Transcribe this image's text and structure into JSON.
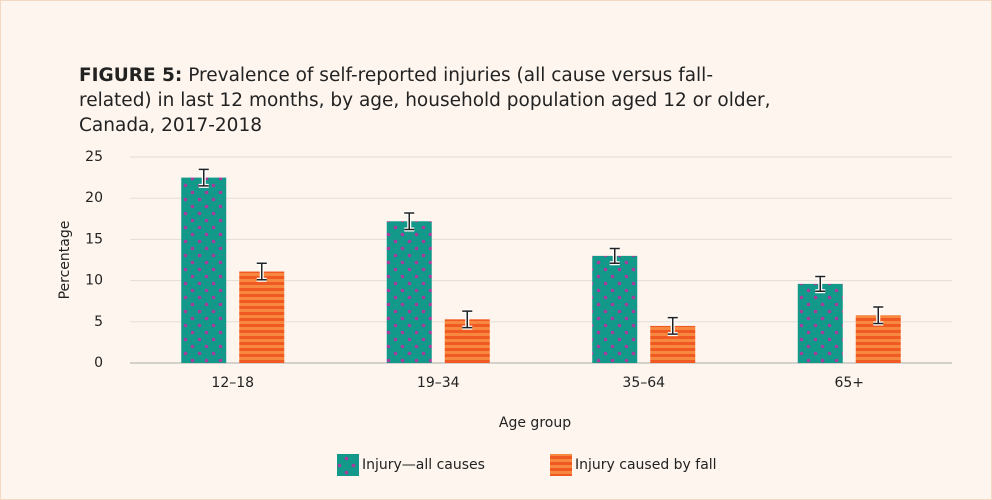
{
  "chart_data": {
    "type": "bar",
    "title_label": "FIGURE 5:",
    "title": "Prevalence of self-reported injuries (all cause versus fall-related) in last 12 months, by age, household population aged 12 or older, Canada, 2017-2018",
    "categories": [
      "12–18",
      "19–34",
      "35–64",
      "65+"
    ],
    "series": [
      {
        "name": "Injury—all causes",
        "color": "#13998a",
        "values": [
          22.5,
          17.2,
          13.0,
          9.6
        ],
        "errors": [
          1.0,
          1.0,
          0.9,
          0.9
        ]
      },
      {
        "name": "Injury caused by fall",
        "color": "#f05a22",
        "values": [
          11.1,
          5.3,
          4.5,
          5.8
        ],
        "errors": [
          1.0,
          1.0,
          1.0,
          1.0
        ]
      }
    ],
    "ylim": [
      0,
      25
    ],
    "yticks": [
      0,
      5,
      10,
      15,
      20,
      25
    ],
    "ylabel": "Percentage",
    "xlabel": "Age group",
    "grid": true
  }
}
